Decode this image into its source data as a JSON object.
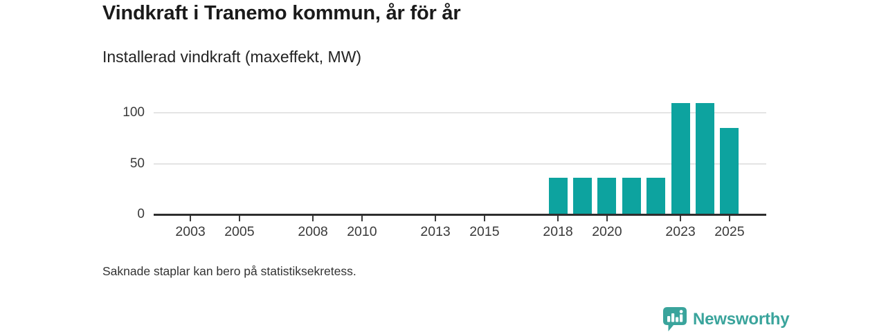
{
  "title": "Vindkraft i Tranemo kommun, år för år",
  "subtitle": "Installerad vindkraft (maxeffekt, MW)",
  "footnote": "Saknade staplar kan bero på statistiksekretess.",
  "brand": {
    "name": "Newsworthy",
    "icon": "newsworthy-speech-bubble-barchart-icon",
    "color": "#3aa49c"
  },
  "colors": {
    "bar": "#0da39f",
    "axis": "#2e2e2e",
    "gridline": "#e4e4e4",
    "title_text": "#1a1a1a",
    "tick_text": "#3a3a3a"
  },
  "chart_data": {
    "type": "bar",
    "title": "Vindkraft i Tranemo kommun, år för år",
    "subtitle": "Installerad vindkraft (maxeffekt, MW)",
    "unit": "MW",
    "x": [
      2018,
      2019,
      2020,
      2021,
      2022,
      2023,
      2024,
      2025
    ],
    "values": [
      36,
      36,
      36,
      36,
      36,
      110,
      110,
      85
    ],
    "x_domain": [
      2002,
      2026
    ],
    "x_tick_labels": [
      "2003",
      "2005",
      "2008",
      "2010",
      "2013",
      "2015",
      "2018",
      "2020",
      "2023",
      "2025"
    ],
    "y_ticks": [
      0,
      50,
      100
    ],
    "ylim": [
      0,
      116
    ],
    "grid": "horizontal",
    "legend": "none",
    "bar_color": "#0da39f"
  }
}
